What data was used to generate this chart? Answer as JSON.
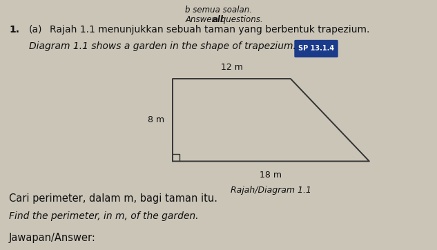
{
  "background_color": "#cbc5b8",
  "text_color": "#111111",
  "top_partial": "b semua soalan.",
  "answer_line_normal": "Answer ",
  "answer_line_bold": "all",
  "answer_line_end": " questions.",
  "q_num": "1.",
  "q_part": "(a)",
  "q_malay": "Rajah 1.1 menunjukkan sebuah taman yang berbentuk trapezium.",
  "q_english": "Diagram 1.1 shows a garden in the shape of trapezium.",
  "badge_text": "SP 13.1.4",
  "badge_bg": "#1a3a8a",
  "badge_text_color": "#ffffff",
  "top_label": "12 m",
  "left_label": "8 m",
  "bottom_label": "18 m",
  "caption": "Rajah/Diagram 1.1",
  "q2_malay": "Cari perimeter, dalam m, bagi taman itu.",
  "q2_english": "Find the perimeter, in m, of the garden.",
  "answer_label": "Jawapan/Answer:",
  "trap_bl": [
    0.395,
    0.355
  ],
  "trap_br": [
    0.845,
    0.355
  ],
  "trap_tl": [
    0.395,
    0.685
  ],
  "trap_tr": [
    0.665,
    0.685
  ],
  "sq_size": 0.016
}
